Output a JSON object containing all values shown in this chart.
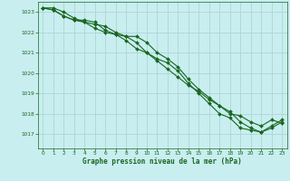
{
  "title": "Graphe pression niveau de la mer (hPa)",
  "bg_color": "#c8eef0",
  "grid_color": "#b0d4d4",
  "line_color": "#1a6620",
  "marker_color": "#1a6620",
  "ylim": [
    1016.3,
    1023.5
  ],
  "xlim": [
    -0.5,
    23.5
  ],
  "yticks": [
    1017,
    1018,
    1019,
    1020,
    1021,
    1022,
    1023
  ],
  "xticks": [
    0,
    1,
    2,
    3,
    4,
    5,
    6,
    7,
    8,
    9,
    10,
    11,
    12,
    13,
    14,
    15,
    16,
    17,
    18,
    19,
    20,
    21,
    22,
    23
  ],
  "series1": [
    1023.2,
    1023.2,
    1023.0,
    1022.7,
    1022.5,
    1022.2,
    1022.0,
    1021.9,
    1021.8,
    1021.8,
    1021.5,
    1021.0,
    1020.7,
    1020.3,
    1019.7,
    1019.2,
    1018.8,
    1018.4,
    1018.1,
    1017.6,
    1017.3,
    1017.1,
    1017.3,
    1017.6
  ],
  "series2": [
    1023.2,
    1023.1,
    1022.8,
    1022.6,
    1022.6,
    1022.5,
    1022.1,
    1021.9,
    1021.6,
    1021.2,
    1021.0,
    1020.6,
    1020.2,
    1019.8,
    1019.4,
    1019.1,
    1018.7,
    1018.4,
    1018.0,
    1017.9,
    1017.6,
    1017.4,
    1017.7,
    1017.55
  ],
  "series3": [
    1023.2,
    1023.1,
    1022.8,
    1022.6,
    1022.5,
    1022.4,
    1022.3,
    1022.0,
    1021.8,
    1021.5,
    1021.0,
    1020.7,
    1020.5,
    1020.1,
    1019.5,
    1019.0,
    1018.5,
    1018.0,
    1017.8,
    1017.3,
    1017.2,
    1017.1,
    1017.4,
    1017.7
  ]
}
